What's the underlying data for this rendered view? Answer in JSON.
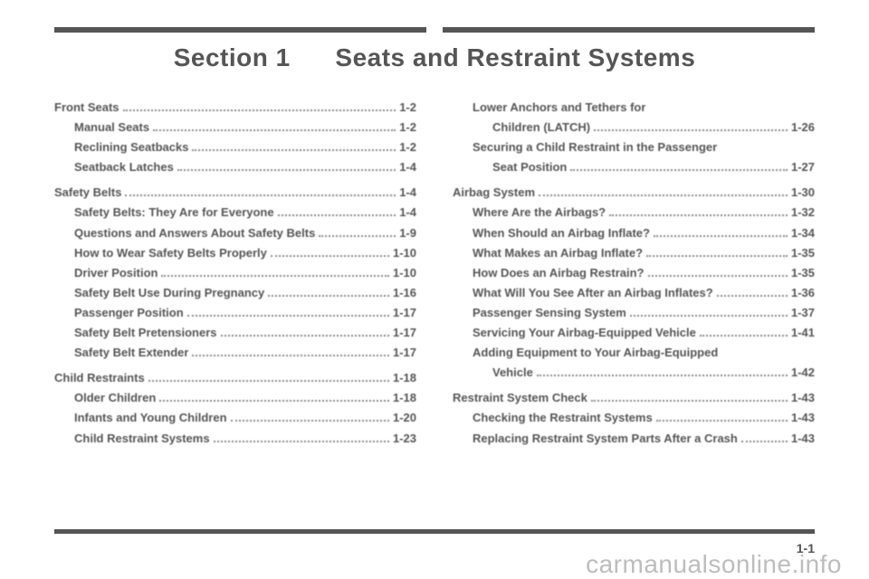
{
  "section_number": "Section 1",
  "section_title": "Seats and Restraint Systems",
  "page_number": "1-1",
  "watermark": "carmanualsonline.info",
  "columns": [
    [
      {
        "label": "Front Seats",
        "page": "1-2",
        "level": 0
      },
      {
        "label": "Manual Seats",
        "page": "1-2",
        "level": 1
      },
      {
        "label": "Reclining Seatbacks",
        "page": "1-2",
        "level": 1
      },
      {
        "label": "Seatback Latches",
        "page": "1-4",
        "level": 1
      },
      {
        "label": "Safety Belts",
        "page": "1-4",
        "level": 0
      },
      {
        "label": "Safety Belts: They Are for Everyone",
        "page": "1-4",
        "level": 1
      },
      {
        "label": "Questions and Answers About Safety Belts",
        "page": "1-9",
        "level": 1
      },
      {
        "label": "How to Wear Safety Belts Properly",
        "page": "1-10",
        "level": 1
      },
      {
        "label": "Driver Position",
        "page": "1-10",
        "level": 1
      },
      {
        "label": "Safety Belt Use During Pregnancy",
        "page": "1-16",
        "level": 1
      },
      {
        "label": "Passenger Position",
        "page": "1-17",
        "level": 1
      },
      {
        "label": "Safety Belt Pretensioners",
        "page": "1-17",
        "level": 1
      },
      {
        "label": "Safety Belt Extender",
        "page": "1-17",
        "level": 1
      },
      {
        "label": "Child Restraints",
        "page": "1-18",
        "level": 0
      },
      {
        "label": "Older Children",
        "page": "1-18",
        "level": 1
      },
      {
        "label": "Infants and Young Children",
        "page": "1-20",
        "level": 1
      },
      {
        "label": "Child Restraint Systems",
        "page": "1-23",
        "level": 1
      }
    ],
    [
      {
        "label": "Lower Anchors and Tethers for",
        "page": "",
        "level": 1,
        "nopage": true
      },
      {
        "label": "Children (LATCH)",
        "page": "1-26",
        "level": 2
      },
      {
        "label": "Securing a Child Restraint in the Passenger",
        "page": "",
        "level": 1,
        "nopage": true
      },
      {
        "label": "Seat Position",
        "page": "1-27",
        "level": 2
      },
      {
        "label": "Airbag System",
        "page": "1-30",
        "level": 0
      },
      {
        "label": "Where Are the Airbags?",
        "page": "1-32",
        "level": 1
      },
      {
        "label": "When Should an Airbag Inflate?",
        "page": "1-34",
        "level": 1
      },
      {
        "label": "What Makes an Airbag Inflate?",
        "page": "1-35",
        "level": 1
      },
      {
        "label": "How Does an Airbag Restrain?",
        "page": "1-35",
        "level": 1
      },
      {
        "label": "What Will You See After an Airbag Inflates?",
        "page": "1-36",
        "level": 1
      },
      {
        "label": "Passenger Sensing System",
        "page": "1-37",
        "level": 1
      },
      {
        "label": "Servicing Your Airbag-Equipped Vehicle",
        "page": "1-41",
        "level": 1
      },
      {
        "label": "Adding Equipment to Your Airbag-Equipped",
        "page": "",
        "level": 1,
        "nopage": true
      },
      {
        "label": "Vehicle",
        "page": "1-42",
        "level": 2
      },
      {
        "label": "Restraint System Check",
        "page": "1-43",
        "level": 0
      },
      {
        "label": "Checking the Restraint Systems",
        "page": "1-43",
        "level": 1
      },
      {
        "label": "Replacing Restraint System Parts After a Crash",
        "page": "1-43",
        "level": 1
      }
    ]
  ]
}
